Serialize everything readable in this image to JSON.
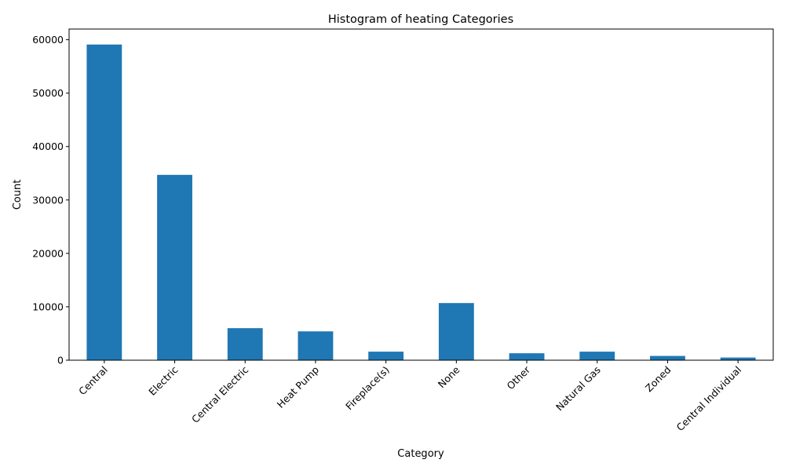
{
  "chart_data": {
    "type": "bar",
    "title": "Histogram of heating Categories",
    "xlabel": "Category",
    "ylabel": "Count",
    "categories": [
      "Central",
      "Electric",
      "Central Electric",
      "Heat Pump",
      "Fireplace(s)",
      "None",
      "Other",
      "Natural Gas",
      "Zoned",
      "Central Individual"
    ],
    "values": [
      59100,
      34700,
      6000,
      5400,
      1600,
      10700,
      1300,
      1600,
      800,
      500
    ],
    "ylim": [
      0,
      62000
    ],
    "yticks": [
      0,
      10000,
      20000,
      30000,
      40000,
      50000,
      60000
    ],
    "ytick_labels": [
      "0",
      "10000",
      "20000",
      "30000",
      "40000",
      "50000",
      "60000"
    ],
    "grid": false,
    "legend": "none",
    "bar_color": "#1f77b4"
  }
}
